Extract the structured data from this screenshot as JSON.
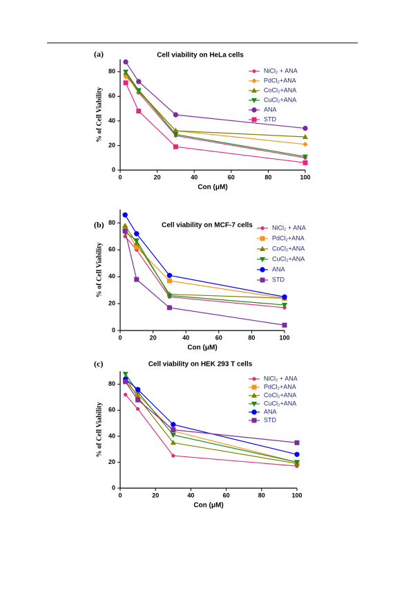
{
  "chart_data": [
    {
      "type": "line",
      "label": "(a)",
      "title": "Cell viability  on HeLa cells",
      "x_label": "Con (μM)",
      "y_label": "% of Cell Viability",
      "x": [
        3,
        10,
        30,
        100
      ],
      "xlim": [
        0,
        100
      ],
      "xticks": [
        0,
        20,
        40,
        60,
        80,
        100
      ],
      "ylim": [
        0,
        90
      ],
      "yticks": [
        0,
        20,
        40,
        60,
        80
      ],
      "series": [
        {
          "name": "NiCl₂ + ANA",
          "color": "#d6387f",
          "marker": "circle-small",
          "values": [
            78,
            63,
            28,
            10
          ]
        },
        {
          "name": "PdCl₂+ANA",
          "color": "#f7941d",
          "marker": "diamond",
          "values": [
            76,
            65,
            32,
            21
          ]
        },
        {
          "name": "CoCl₂+ANA",
          "color": "#808000",
          "marker": "triangle",
          "values": [
            79,
            64,
            32,
            27
          ]
        },
        {
          "name": "CuCl₂+ANA",
          "color": "#1a8c1a",
          "marker": "triangle-down",
          "values": [
            80,
            65,
            29,
            11
          ]
        },
        {
          "name": "ANA",
          "color": "#7b2c9e",
          "marker": "circle",
          "values": [
            88,
            72,
            45,
            34
          ]
        },
        {
          "name": "STD",
          "color": "#e8257a",
          "marker": "square",
          "values": [
            71,
            48,
            19,
            6
          ]
        }
      ]
    },
    {
      "type": "line",
      "label": "(b)",
      "title": "Cell viability on MCF-7 cells",
      "x_label": "Con (μM)",
      "y_label": "% of Cell Viability",
      "x": [
        3,
        10,
        30,
        100
      ],
      "xlim": [
        0,
        100
      ],
      "xticks": [
        0,
        20,
        40,
        60,
        80,
        100
      ],
      "ylim": [
        0,
        90
      ],
      "yticks": [
        0,
        20,
        40,
        60,
        80
      ],
      "series": [
        {
          "name": "NiCl₂ + ANA",
          "color": "#e0306f",
          "marker": "circle-small",
          "values": [
            70,
            60,
            25,
            17
          ]
        },
        {
          "name": "PdCl₂+ANA",
          "color": "#f7941d",
          "marker": "square",
          "values": [
            76,
            62,
            37,
            24
          ]
        },
        {
          "name": "CoCl₂+ANA",
          "color": "#808000",
          "marker": "triangle",
          "values": [
            78,
            65,
            27,
            24
          ]
        },
        {
          "name": "CuCl₂+ANA",
          "color": "#1a8c1a",
          "marker": "triangle-down",
          "values": [
            73,
            67,
            26,
            19
          ]
        },
        {
          "name": "ANA",
          "color": "#0000ff",
          "marker": "circle",
          "values": [
            86,
            72,
            41,
            25
          ]
        },
        {
          "name": "STD",
          "color": "#7b2c9e",
          "marker": "square",
          "values": [
            74,
            38,
            17,
            4
          ]
        }
      ]
    },
    {
      "type": "line",
      "label": "(c)",
      "title": "Cell viability on HEK 293 T cells",
      "x_label": "Con (μM)",
      "y_label": "% of Cell Viability",
      "x": [
        3,
        10,
        30,
        100
      ],
      "xlim": [
        0,
        100
      ],
      "xticks": [
        0,
        20,
        40,
        60,
        80,
        100
      ],
      "ylim": [
        0,
        90
      ],
      "yticks": [
        0,
        20,
        40,
        60,
        80
      ],
      "series": [
        {
          "name": "NiCl₂ + ANA",
          "color": "#e0306f",
          "marker": "circle-small",
          "values": [
            72,
            61,
            25,
            17
          ]
        },
        {
          "name": "PdCl₂+ANA",
          "color": "#f7941d",
          "marker": "square",
          "values": [
            82,
            72,
            44,
            20
          ]
        },
        {
          "name": "CoCl₂+ANA",
          "color": "#808000",
          "marker": "triangle",
          "values": [
            85,
            70,
            35,
            19
          ]
        },
        {
          "name": "CuCl₂+ANA",
          "color": "#1a8c1a",
          "marker": "triangle-down",
          "values": [
            88,
            74,
            41,
            20
          ]
        },
        {
          "name": "ANA",
          "color": "#0000ff",
          "marker": "circle",
          "values": [
            84,
            76,
            49,
            26
          ]
        },
        {
          "name": "STD",
          "color": "#7b2c9e",
          "marker": "square",
          "values": [
            82,
            68,
            45,
            35
          ]
        }
      ]
    }
  ]
}
